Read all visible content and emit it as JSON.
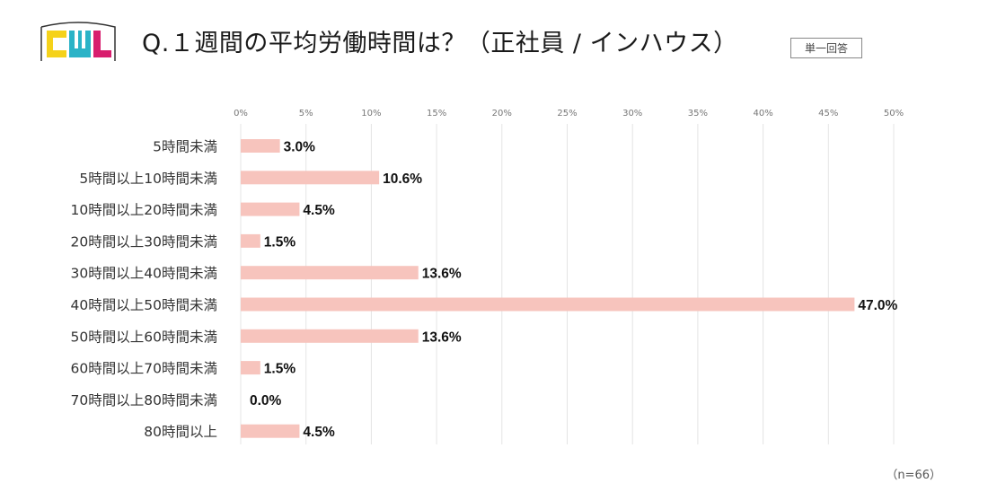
{
  "header": {
    "logo_text": "CWL",
    "title": "Q.１週間の平均労働時間は？（正社員 / インハウス）",
    "badge": "単一回答"
  },
  "footer": {
    "sample_note": "（n=66）"
  },
  "colors": {
    "bar": "#f7c4bd",
    "grid": "#e4e4e4",
    "label": "#111111",
    "logo_yellow": "#f5d21a",
    "logo_cyan": "#2bb3c7",
    "logo_magenta": "#d81e6e"
  },
  "chart_data": {
    "type": "bar",
    "orientation": "horizontal",
    "title": "",
    "xlabel": "",
    "ylabel": "",
    "xlim": [
      0,
      50
    ],
    "x_ticks": [
      "0%",
      "5%",
      "10%",
      "15%",
      "20%",
      "25%",
      "30%",
      "35%",
      "40%",
      "45%",
      "50%"
    ],
    "grid": true,
    "categories": [
      "5時間未満",
      "5時間以上10時間未満",
      "10時間以上20時間未満",
      "20時間以上30時間未満",
      "30時間以上40時間未満",
      "40時間以上50時間未満",
      "50時間以上60時間未満",
      "60時間以上70時間未満",
      "70時間以上80時間未満",
      "80時間以上"
    ],
    "values": [
      3.0,
      10.6,
      4.5,
      1.5,
      13.6,
      47.0,
      13.6,
      1.5,
      0.0,
      4.5
    ],
    "value_labels": [
      "3.0%",
      "10.6%",
      "4.5%",
      "1.5%",
      "13.6%",
      "47.0%",
      "13.6%",
      "1.5%",
      "0.0%",
      "4.5%"
    ]
  }
}
